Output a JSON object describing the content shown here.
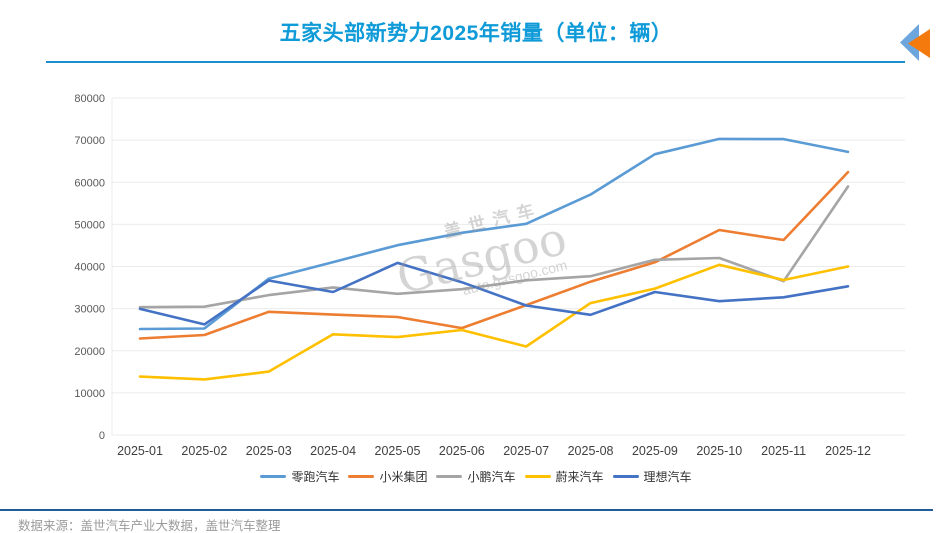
{
  "title": "五家头部新势力2025年销量（单位：辆）",
  "watermark": {
    "brand_cn": "盖世汽车",
    "brand_en": "Gasgoo",
    "domain": "auto.gasgoo.com"
  },
  "footer": {
    "source_text": "数据来源：盖世汽车产业大数据，盖世汽车整理"
  },
  "colors": {
    "title": "#0f9ad8",
    "title_rule": "#1b8fce",
    "footer_rule": "#1f5c99",
    "footer_text": "#9a9a9a",
    "grid": "#ebebeb",
    "y_tick_label": "#595959",
    "x_tick_label": "#404040",
    "legend_text": "#333333",
    "logo_blue": "#6ca6dd",
    "logo_orange": "#f57a0d"
  },
  "chart_data": {
    "type": "line",
    "title": "五家头部新势力2025年销量（单位：辆）",
    "x": [
      "2025-01",
      "2025-02",
      "2025-03",
      "2025-04",
      "2025-05",
      "2025-06",
      "2025-07",
      "2025-08",
      "2025-09",
      "2025-10",
      "2025-11",
      "2025-12"
    ],
    "series": [
      {
        "name": "零跑汽车",
        "color": "#5B9BD5",
        "values": [
          25170,
          25287,
          37095,
          41039,
          45067,
          48006,
          50129,
          57066,
          66657,
          70289,
          70254,
          67200
        ]
      },
      {
        "name": "小米集团",
        "color": "#ED7D31",
        "values": [
          22897,
          23728,
          29244,
          28585,
          28013,
          25378,
          30825,
          36396,
          41000,
          48654,
          46300,
          62400
        ]
      },
      {
        "name": "小鹏汽车",
        "color": "#A5A5A5",
        "values": [
          30350,
          30453,
          33205,
          35045,
          33525,
          34611,
          36717,
          37709,
          41581,
          42013,
          36500,
          59000
        ]
      },
      {
        "name": "蔚来汽车",
        "color": "#FFC000",
        "values": [
          13863,
          13192,
          15039,
          23900,
          23231,
          24925,
          21017,
          31305,
          34749,
          40397,
          36800,
          40000
        ]
      },
      {
        "name": "理想汽车",
        "color": "#4472C4",
        "values": [
          29927,
          26263,
          36674,
          33939,
          40856,
          36279,
          30731,
          28529,
          33951,
          31767,
          32700,
          35300
        ]
      }
    ],
    "ylim": [
      0,
      80000
    ],
    "y_ticks": [
      0,
      10000,
      20000,
      30000,
      40000,
      50000,
      60000,
      70000,
      80000
    ],
    "grid": true,
    "legend_position": "bottom",
    "xlabel": "",
    "ylabel": ""
  }
}
